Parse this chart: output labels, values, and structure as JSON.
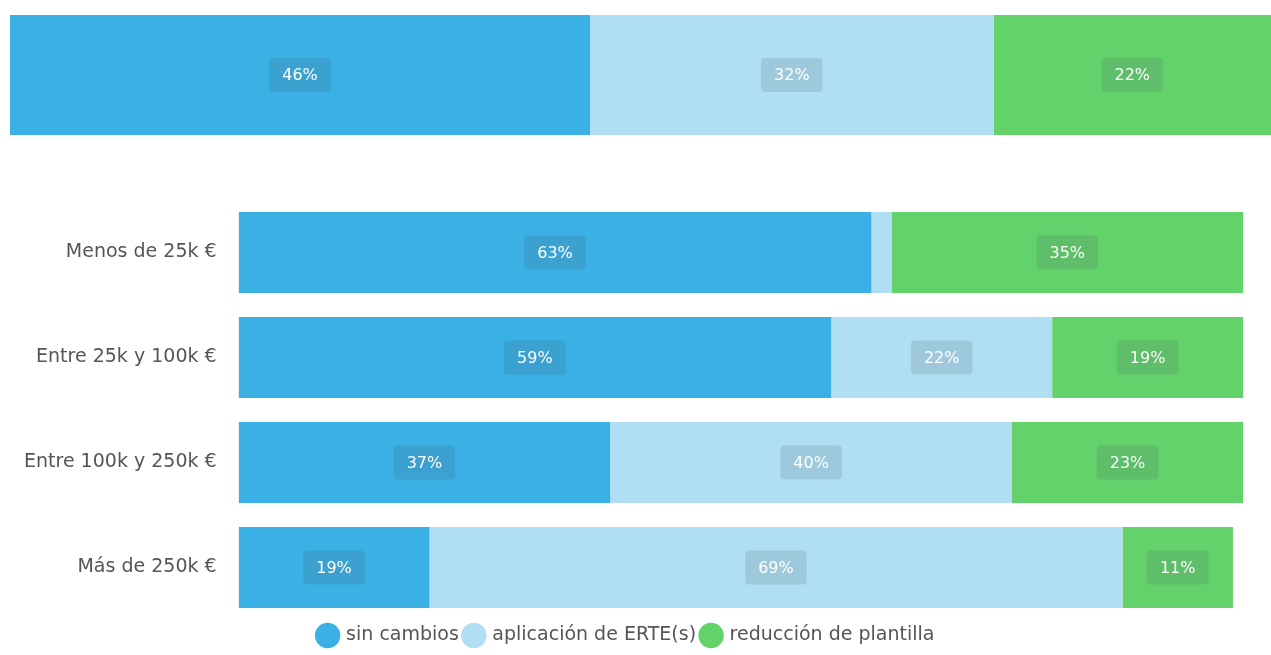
{
  "chart_data": [
    {
      "type": "bar",
      "orientation": "horizontal",
      "stacked": true,
      "categories": [
        null
      ],
      "legend": false,
      "series": [
        {
          "color": "#3ab0e4",
          "values": [
            46
          ],
          "value_labels": [
            "46%"
          ]
        },
        {
          "color": "#b0dff3",
          "values": [
            32
          ],
          "value_labels": [
            "32%"
          ]
        },
        {
          "color": "#64d26a",
          "values": [
            22
          ],
          "value_labels": [
            "22%"
          ]
        }
      ]
    },
    {
      "type": "bar",
      "orientation": "horizontal",
      "stacked": true,
      "categories": [
        "Menos de 25k €",
        "Entre 25k y 100k €",
        "Entre 100k y 250k €",
        "Más de 250k €"
      ],
      "legend": "bottom",
      "series": [
        {
          "name": "sin cambios",
          "color": "#3ab0e4",
          "values": [
            63,
            59,
            37,
            19
          ],
          "value_labels": [
            "63%",
            "59%",
            "37%",
            "19%"
          ]
        },
        {
          "name": "aplicación de ERTE(s)",
          "color": "#b0dff3",
          "values": [
            2,
            22,
            40,
            69
          ],
          "value_labels": [
            null,
            "22%",
            "40%",
            "69%"
          ]
        },
        {
          "name": "reducción de plantilla",
          "color": "#64d26a",
          "values": [
            35,
            19,
            23,
            11
          ],
          "value_labels": [
            "35%",
            "19%",
            "23%",
            "11%"
          ]
        }
      ]
    }
  ]
}
